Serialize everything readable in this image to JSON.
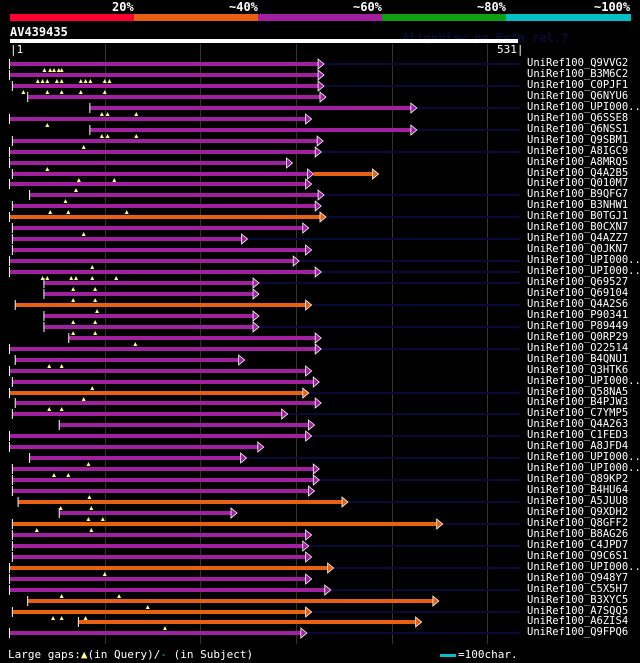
{
  "legend": {
    "labels": [
      "20%",
      "~40%",
      "~60%",
      "~80%",
      "~100%"
    ],
    "colors": [
      "#ff0030",
      "#e86010",
      "#a020a0",
      "#10a010",
      "#00c0c8"
    ]
  },
  "query": {
    "name": "AV439435",
    "start": "1",
    "end": "531",
    "length": 531
  },
  "watermark": "AlignView.pm Beta rel.7",
  "colors": {
    "purple": "#a020a0",
    "orange": "#e86010",
    "navy": "#0a0a3a",
    "query_gap": "#ffff88",
    "tick": "#ffffff"
  },
  "grid_positions": [
    100,
    200,
    300,
    400,
    500
  ],
  "rows": [
    {
      "label": "UniRef100_Q9VVG2",
      "color": "purple",
      "start": 1,
      "end": 323,
      "ext": true,
      "qg": [
        37,
        43,
        47,
        52,
        55
      ]
    },
    {
      "label": "UniRef100_B3M6C2",
      "color": "purple",
      "start": 1,
      "end": 323,
      "ext": false,
      "qg": [
        30,
        35,
        40,
        50,
        55,
        75,
        80,
        85,
        100,
        105
      ]
    },
    {
      "label": "UniRef100_C0PJF1",
      "color": "purple",
      "start": 4,
      "end": 323,
      "ext": true,
      "qg": [
        15,
        40,
        55,
        75,
        100
      ]
    },
    {
      "label": "UniRef100_Q6NYU6",
      "color": "purple",
      "start": 20,
      "end": 325,
      "ext": false,
      "qg": []
    },
    {
      "label": "UniRef100_UPI000..",
      "color": "purple",
      "start": 85,
      "end": 420,
      "ext": true,
      "qg": [
        97,
        103,
        133
      ]
    },
    {
      "label": "UniRef100_Q6SSE8",
      "color": "purple",
      "start": 1,
      "end": 310,
      "ext": false,
      "qg": [
        40
      ]
    },
    {
      "label": "UniRef100_Q6NSS1",
      "color": "purple",
      "start": 85,
      "end": 420,
      "ext": true,
      "qg": [
        97,
        103,
        133
      ]
    },
    {
      "label": "UniRef100_Q9SBM1",
      "color": "purple",
      "start": 4,
      "end": 322,
      "ext": false,
      "qg": [
        78
      ]
    },
    {
      "label": "UniRef100_A8IGC9",
      "color": "purple",
      "start": 1,
      "end": 320,
      "ext": true,
      "qg": []
    },
    {
      "label": "UniRef100_A8MRQ5",
      "color": "purple",
      "start": 1,
      "end": 290,
      "ext": false,
      "qg": [
        40
      ]
    },
    {
      "label": "UniRef100_Q4A2B5",
      "color": "purple",
      "start": 4,
      "end": 312,
      "ext": false,
      "qg": [
        73,
        110
      ],
      "tail": {
        "color": "orange",
        "end": 380
      }
    },
    {
      "label": "UniRef100_Q010M7",
      "color": "purple",
      "start": 1,
      "end": 310,
      "ext": false,
      "qg": [
        70
      ]
    },
    {
      "label": "UniRef100_B9QFG7",
      "color": "purple",
      "start": 22,
      "end": 323,
      "ext": true,
      "qg": [
        59
      ]
    },
    {
      "label": "UniRef100_B3NHW1",
      "color": "purple",
      "start": 4,
      "end": 320,
      "ext": false,
      "qg": [
        43,
        62,
        123
      ]
    },
    {
      "label": "UniRef100_B0TGJ1",
      "color": "orange",
      "start": 1,
      "end": 325,
      "ext": true,
      "qg": []
    },
    {
      "label": "UniRef100_B0CXN7",
      "color": "purple",
      "start": 4,
      "end": 307,
      "ext": false,
      "qg": [
        78
      ]
    },
    {
      "label": "UniRef100_Q4AZZ7",
      "color": "purple",
      "start": 4,
      "end": 243,
      "ext": true,
      "qg": []
    },
    {
      "label": "UniRef100_Q0JKN7",
      "color": "purple",
      "start": 4,
      "end": 310,
      "ext": false,
      "qg": []
    },
    {
      "label": "UniRef100_UPI000..",
      "color": "purple",
      "start": 1,
      "end": 297,
      "ext": true,
      "qg": [
        87
      ]
    },
    {
      "label": "UniRef100_UPI000..",
      "color": "purple",
      "start": 1,
      "end": 320,
      "ext": true,
      "qg": [
        35,
        40,
        65,
        70,
        87,
        112
      ]
    },
    {
      "label": "UniRef100_Q69527",
      "color": "purple",
      "start": 37,
      "end": 255,
      "ext": true,
      "qg": [
        67,
        90
      ]
    },
    {
      "label": "UniRef100_Q69104",
      "color": "purple",
      "start": 37,
      "end": 255,
      "ext": false,
      "qg": [
        67,
        90
      ]
    },
    {
      "label": "UniRef100_Q4A2S6",
      "color": "orange",
      "start": 7,
      "end": 310,
      "ext": true,
      "qg": [
        92
      ]
    },
    {
      "label": "UniRef100_P90341",
      "color": "purple",
      "start": 37,
      "end": 255,
      "ext": false,
      "qg": [
        67,
        90
      ]
    },
    {
      "label": "UniRef100_P89449",
      "color": "purple",
      "start": 37,
      "end": 255,
      "ext": true,
      "qg": [
        67,
        90
      ]
    },
    {
      "label": "UniRef100_Q0RP29",
      "color": "purple",
      "start": 63,
      "end": 320,
      "ext": false,
      "qg": [
        132
      ]
    },
    {
      "label": "UniRef100_O22514",
      "color": "purple",
      "start": 1,
      "end": 320,
      "ext": true,
      "qg": []
    },
    {
      "label": "UniRef100_B4QNU1",
      "color": "purple",
      "start": 7,
      "end": 240,
      "ext": false,
      "qg": [
        42,
        55
      ]
    },
    {
      "label": "UniRef100_Q3HTK6",
      "color": "purple",
      "start": 1,
      "end": 310,
      "ext": false,
      "qg": []
    },
    {
      "label": "UniRef100_UPI000..",
      "color": "purple",
      "start": 4,
      "end": 318,
      "ext": false,
      "qg": [
        87
      ]
    },
    {
      "label": "UniRef100_Q58NA5",
      "color": "orange",
      "start": 1,
      "end": 307,
      "ext": true,
      "qg": [
        78
      ]
    },
    {
      "label": "UniRef100_B4PJW3",
      "color": "purple",
      "start": 7,
      "end": 320,
      "ext": false,
      "qg": [
        42,
        55
      ]
    },
    {
      "label": "UniRef100_C7YMP5",
      "color": "purple",
      "start": 4,
      "end": 285,
      "ext": true,
      "qg": []
    },
    {
      "label": "UniRef100_Q4A263",
      "color": "purple",
      "start": 53,
      "end": 313,
      "ext": false,
      "qg": []
    },
    {
      "label": "UniRef100_C1FED3",
      "color": "purple",
      "start": 1,
      "end": 310,
      "ext": true,
      "qg": []
    },
    {
      "label": "UniRef100_A8JFD4",
      "color": "purple",
      "start": 1,
      "end": 260,
      "ext": false,
      "qg": []
    },
    {
      "label": "UniRef100_UPI000..",
      "color": "purple",
      "start": 22,
      "end": 242,
      "ext": true,
      "qg": [
        83
      ]
    },
    {
      "label": "UniRef100_UPI000..",
      "color": "purple",
      "start": 4,
      "end": 318,
      "ext": false,
      "qg": [
        47,
        62
      ]
    },
    {
      "label": "UniRef100_Q89KP2",
      "color": "purple",
      "start": 4,
      "end": 318,
      "ext": true,
      "qg": []
    },
    {
      "label": "UniRef100_B4HU64",
      "color": "purple",
      "start": 4,
      "end": 313,
      "ext": false,
      "qg": [
        84
      ]
    },
    {
      "label": "UniRef100_A5JUU8",
      "color": "orange",
      "start": 10,
      "end": 348,
      "ext": true,
      "qg": [
        54,
        86
      ]
    },
    {
      "label": "UniRef100_Q9XDH2",
      "color": "purple",
      "start": 53,
      "end": 232,
      "ext": false,
      "qg": [
        83,
        98
      ]
    },
    {
      "label": "UniRef100_Q8GFF2",
      "color": "orange",
      "start": 4,
      "end": 447,
      "ext": true,
      "qg": [
        29,
        86
      ]
    },
    {
      "label": "UniRef100_B8AG26",
      "color": "purple",
      "start": 4,
      "end": 310,
      "ext": false,
      "qg": []
    },
    {
      "label": "UniRef100_C4JPD7",
      "color": "purple",
      "start": 4,
      "end": 307,
      "ext": true,
      "qg": []
    },
    {
      "label": "UniRef100_Q9C6S1",
      "color": "purple",
      "start": 4,
      "end": 310,
      "ext": false,
      "qg": []
    },
    {
      "label": "UniRef100_UPI000..",
      "color": "orange",
      "start": 1,
      "end": 333,
      "ext": true,
      "qg": [
        100
      ]
    },
    {
      "label": "UniRef100_Q948Y7",
      "color": "purple",
      "start": 1,
      "end": 310,
      "ext": false,
      "qg": []
    },
    {
      "label": "UniRef100_C5X5H7",
      "color": "purple",
      "start": 1,
      "end": 330,
      "ext": true,
      "qg": [
        55,
        115
      ]
    },
    {
      "label": "UniRef100_B3XYC5",
      "color": "orange",
      "start": 20,
      "end": 443,
      "ext": false,
      "qg": [
        145
      ]
    },
    {
      "label": "UniRef100_A7SQQ5",
      "color": "orange",
      "start": 4,
      "end": 310,
      "ext": true,
      "qg": [
        46,
        55,
        80
      ]
    },
    {
      "label": "UniRef100_A6ZIS4",
      "color": "orange",
      "start": 73,
      "end": 425,
      "ext": false,
      "qg": [
        163
      ]
    },
    {
      "label": "UniRef100_Q9FPQ6",
      "color": "purple",
      "start": 1,
      "end": 305,
      "ext": true,
      "qg": []
    }
  ],
  "footer": {
    "large_gaps_label": "Large gaps:",
    "query_marker": "▲",
    "in_query": "(in Query)/",
    "subject_marker": "-",
    "in_subject": " (in Subject)",
    "scale_label": "=100char."
  }
}
